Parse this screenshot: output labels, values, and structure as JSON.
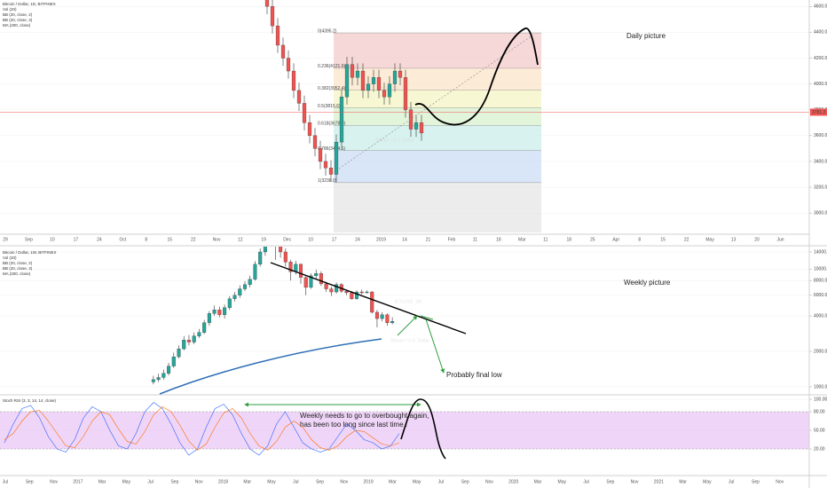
{
  "chart_data": [
    {
      "type": "candlestick",
      "title": "Bitcoin / Dollar, 1D, BITFINEX",
      "indicators": [
        "Vol (20)",
        "BB (20, close, 2)",
        "BB (20, close, 3)",
        "MA (200, close)"
      ],
      "watermark": "BTCUSD, 1D",
      "watermark_subtitle": "Bitcoin / U.S. Dollar",
      "annotations": [
        "Daily picture"
      ],
      "open": [
        4680,
        4600,
        4450,
        4300,
        4200,
        4100,
        3950,
        3850,
        3700,
        3600,
        3500,
        3400,
        3350,
        3300,
        3550,
        3900,
        4150,
        4050,
        4100,
        3950,
        4000,
        4050,
        3950,
        3900,
        4000,
        4100,
        4050,
        3800,
        3650,
        3700
      ],
      "high": [
        4740,
        4660,
        4510,
        4360,
        4260,
        4160,
        4010,
        3910,
        3760,
        3660,
        3560,
        3460,
        3410,
        3610,
        3960,
        4210,
        4210,
        4160,
        4160,
        4060,
        4110,
        4110,
        4010,
        4060,
        4160,
        4160,
        4110,
        3860,
        3760,
        3760
      ],
      "low": [
        4540,
        4390,
        4240,
        4140,
        4040,
        3890,
        3790,
        3640,
        3540,
        3440,
        3340,
        3290,
        3240,
        3240,
        3490,
        3840,
        3990,
        3990,
        3890,
        3890,
        3940,
        3890,
        3840,
        3840,
        3940,
        3990,
        3740,
        3590,
        3590,
        3560
      ],
      "close": [
        4600,
        4450,
        4300,
        4200,
        4100,
        3950,
        3850,
        3700,
        3600,
        3500,
        3400,
        3350,
        3300,
        3550,
        3900,
        4150,
        4050,
        4100,
        3950,
        4000,
        4050,
        3950,
        3900,
        4000,
        4100,
        4050,
        3800,
        3650,
        3700,
        3620
      ],
      "up_color": "#26a69a",
      "down_color": "#ef5350",
      "ylim": [
        2850,
        4650
      ],
      "yticks": [
        {
          "value": 3000,
          "label": "3000.0"
        },
        {
          "value": 3200,
          "label": "3200.0"
        },
        {
          "value": 3400,
          "label": "3400.0"
        },
        {
          "value": 3600,
          "label": "3600.0"
        },
        {
          "value": 3800,
          "label": "3800.0"
        },
        {
          "value": 4000,
          "label": "4000.0"
        },
        {
          "value": 4200,
          "label": "4200.0"
        },
        {
          "value": 4400,
          "label": "4400.0"
        },
        {
          "value": 4600,
          "label": "4600.0"
        }
      ],
      "last_price": 3781.3,
      "last_price_color": "#ef5350",
      "fib_levels": [
        {
          "value": 4395.2,
          "label": "0(4395.2)"
        },
        {
          "value": 4121.6,
          "label": "0.236(4121.6)"
        },
        {
          "value": 3952.4,
          "label": "0.382(3952.4)"
        },
        {
          "value": 3815.6,
          "label": "0.5(3815.6)"
        },
        {
          "value": 3678.8,
          "label": "0.618(3678.8)"
        },
        {
          "value": 3484.1,
          "label": "0.786(3484.1)"
        },
        {
          "value": 3236.0,
          "label": "1(3236.0)"
        }
      ],
      "fib_colors": [
        "#f4c7c7",
        "#fbe3c4",
        "#f4f4c0",
        "#d6efc9",
        "#c8ece8",
        "#c9dcf3",
        "#e4e4e4",
        "#cfcdf3"
      ],
      "x_labels": [
        "29",
        "Sep",
        "10",
        "17",
        "24",
        "Oct",
        "8",
        "15",
        "22",
        "Nov",
        "12",
        "19",
        "Dec",
        "10",
        "17",
        "24",
        "2019",
        "14",
        "21",
        "Feb",
        "11",
        "18",
        "Mar",
        "11",
        "18",
        "25",
        "Apr",
        "8",
        "15",
        "22",
        "May",
        "13",
        "20",
        "Jun"
      ]
    },
    {
      "type": "candlestick",
      "title": "Bitcoin / Dollar, 1W, BITFINEX",
      "indicators": [
        "Vol (20)",
        "BB (20, close, 2)",
        "BB (20, close, 3)",
        "MA (200, close)"
      ],
      "watermark": "BTCUSD, 1W",
      "watermark_subtitle": "Bitcoin / U.S. Dollar",
      "annotations": [
        "Weekly picture",
        "Probably final low"
      ],
      "log_scale": true,
      "open": [
        1100,
        1150,
        1200,
        1300,
        1500,
        1800,
        2100,
        2500,
        2400,
        2700,
        2900,
        3500,
        4200,
        4500,
        4100,
        4700,
        5600,
        6000,
        6800,
        7400,
        8200,
        11000,
        14000,
        16500,
        19000,
        16000,
        14000,
        11500,
        9500,
        11000,
        8500,
        7000,
        8800,
        9200,
        7500,
        6800,
        6400,
        7400,
        6500,
        6300,
        5600,
        6400,
        6300,
        6400,
        4300,
        3800,
        4100,
        3500
      ],
      "high": [
        1240,
        1290,
        1400,
        1600,
        1950,
        2250,
        2700,
        2750,
        2900,
        3100,
        3700,
        4400,
        4900,
        4800,
        5000,
        5900,
        6400,
        7300,
        7900,
        8800,
        11700,
        15000,
        17500,
        19800,
        19500,
        17000,
        15000,
        12000,
        11800,
        11200,
        9000,
        9200,
        9900,
        9600,
        7800,
        7100,
        7700,
        7600,
        6700,
        6500,
        6600,
        6700,
        6600,
        6500,
        4500,
        4300,
        4200,
        3900
      ],
      "low": [
        1050,
        1100,
        1150,
        1250,
        1450,
        1750,
        2050,
        2250,
        2300,
        2600,
        2800,
        3300,
        4000,
        3900,
        3800,
        4500,
        5300,
        5700,
        6500,
        7000,
        8000,
        10500,
        13000,
        15500,
        12000,
        12500,
        10500,
        8000,
        9000,
        7500,
        6000,
        6800,
        8200,
        7200,
        6400,
        5900,
        6200,
        6300,
        6000,
        5500,
        5500,
        6100,
        6200,
        4200,
        3200,
        3600,
        3300,
        3400
      ],
      "close": [
        1150,
        1200,
        1300,
        1500,
        1800,
        2100,
        2500,
        2400,
        2700,
        2900,
        3500,
        4200,
        4500,
        4100,
        4700,
        5600,
        6000,
        6800,
        7400,
        8200,
        11000,
        14000,
        16500,
        19000,
        16000,
        14000,
        11500,
        9500,
        11000,
        8500,
        7000,
        8800,
        9200,
        7500,
        6800,
        6400,
        7400,
        6500,
        6300,
        5600,
        6400,
        6300,
        6400,
        4300,
        3800,
        4100,
        3500,
        3600
      ],
      "up_color": "#26a69a",
      "down_color": "#ef5350",
      "ylim": [
        900,
        15000
      ],
      "yticks": [
        {
          "value": 1000,
          "label": "1000.0"
        },
        {
          "value": 2000,
          "label": "2000.0"
        },
        {
          "value": 4000,
          "label": "4000.0"
        },
        {
          "value": 6000,
          "label": "6000.0"
        },
        {
          "value": 8000,
          "label": "8000.0"
        },
        {
          "value": 10000,
          "label": "10000.0"
        },
        {
          "value": 14000,
          "label": "14000.0"
        }
      ]
    },
    {
      "type": "line",
      "title": "Stoch RSI (3, 3, 14, 14, close)",
      "annotations": [
        "Weekly needs to go to overbought again,",
        "has been too long since last time !"
      ],
      "series": [
        {
          "color": "#2962ff",
          "values": [
            30,
            60,
            85,
            90,
            70,
            40,
            20,
            15,
            35,
            70,
            88,
            80,
            50,
            25,
            20,
            45,
            80,
            95,
            85,
            60,
            30,
            10,
            20,
            55,
            85,
            92,
            75,
            45,
            20,
            10,
            25,
            60,
            80,
            55,
            30,
            20,
            15,
            20,
            40,
            60,
            50,
            35,
            30,
            20,
            25,
            45
          ]
        },
        {
          "color": "#ff6d00",
          "values": [
            35,
            45,
            65,
            80,
            82,
            65,
            45,
            25,
            22,
            40,
            65,
            80,
            75,
            52,
            32,
            28,
            48,
            75,
            88,
            80,
            58,
            33,
            18,
            28,
            55,
            78,
            85,
            70,
            45,
            25,
            18,
            32,
            55,
            65,
            55,
            35,
            22,
            18,
            25,
            40,
            50,
            48,
            38,
            28,
            25,
            30
          ]
        }
      ],
      "band": [
        20,
        80
      ],
      "band_color": "#e1b3f0",
      "ylim": [
        0,
        100
      ],
      "yticks": [
        {
          "value": 20,
          "label": "20.00"
        },
        {
          "value": 50,
          "label": "50.00"
        },
        {
          "value": 80,
          "label": "80.00"
        },
        {
          "value": 100,
          "label": "100.00"
        }
      ],
      "x_labels": [
        "Jul",
        "Sep",
        "Nov",
        "2017",
        "Mar",
        "May",
        "Jul",
        "Sep",
        "Nov",
        "2018",
        "Mar",
        "May",
        "Jul",
        "Sep",
        "Nov",
        "2019",
        "Mar",
        "May",
        "Jul",
        "Sep",
        "Nov",
        "2020",
        "Mar",
        "May",
        "Jul",
        "Sep",
        "Nov",
        "2021",
        "Mar",
        "May",
        "Jul",
        "Sep",
        "Nov"
      ]
    }
  ]
}
